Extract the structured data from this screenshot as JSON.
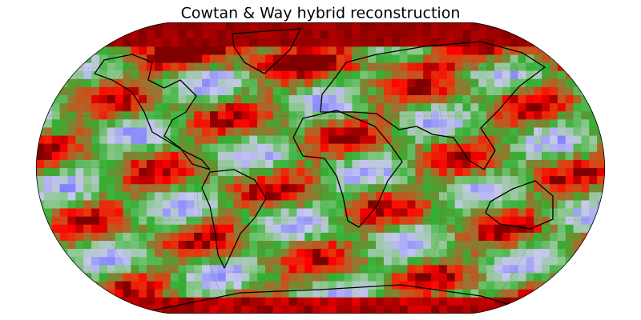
{
  "title": "Cowtan & Way hybrid reconstruction"
}
